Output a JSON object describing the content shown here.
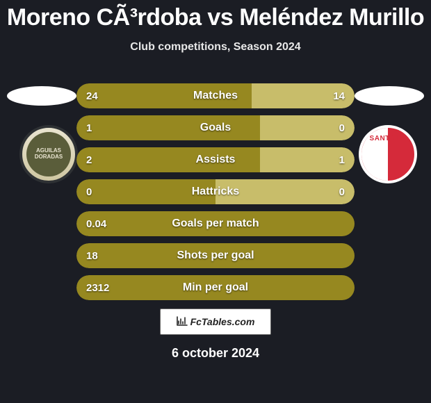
{
  "title": "Moreno CÃ³rdoba vs Meléndez Murillo",
  "subtitle": "Club competitions, Season 2024",
  "date": "6 october 2024",
  "brand": "FcTables.com",
  "colors": {
    "left_bar": "#968820",
    "right_bar": "#c8bd6a",
    "background": "#1b1d24"
  },
  "badges": {
    "left": {
      "label": "AGUILAS DORADAS"
    },
    "right": {
      "label": "SANTA FE"
    }
  },
  "stats": [
    {
      "label": "Matches",
      "left_val": "24",
      "right_val": "14",
      "left_pct": 63,
      "right_pct": 37
    },
    {
      "label": "Goals",
      "left_val": "1",
      "right_val": "0",
      "left_pct": 66,
      "right_pct": 34
    },
    {
      "label": "Assists",
      "left_val": "2",
      "right_val": "1",
      "left_pct": 66,
      "right_pct": 34
    },
    {
      "label": "Hattricks",
      "left_val": "0",
      "right_val": "0",
      "left_pct": 50,
      "right_pct": 50
    },
    {
      "label": "Goals per match",
      "left_val": "0.04",
      "right_val": "",
      "left_pct": 100,
      "right_pct": 0
    },
    {
      "label": "Shots per goal",
      "left_val": "18",
      "right_val": "",
      "left_pct": 100,
      "right_pct": 0
    },
    {
      "label": "Min per goal",
      "left_val": "2312",
      "right_val": "",
      "left_pct": 100,
      "right_pct": 0
    }
  ]
}
